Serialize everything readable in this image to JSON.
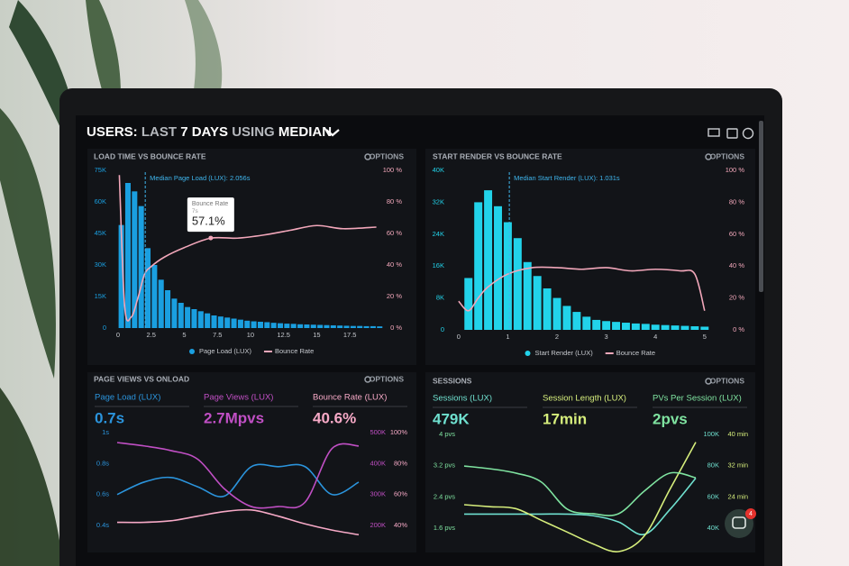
{
  "header": {
    "title_parts": [
      "USERS:",
      "LAST",
      "7 DAYS",
      "USING",
      "MEDIAN"
    ]
  },
  "chat_badge": "4",
  "chart_data": [
    {
      "type": "bar",
      "title": "LOAD TIME VS BOUNCE RATE",
      "options": "OPTIONS",
      "xlim": [
        -0.2,
        19.8
      ],
      "xticks": [
        0,
        2.5,
        5,
        7.5,
        10,
        12.5,
        15,
        17.5
      ],
      "ylim": [
        0,
        75000
      ],
      "yticks": [
        0,
        {
          "value": 15000,
          "label": "15K"
        },
        {
          "value": 30000,
          "label": "30K"
        },
        {
          "value": 45000,
          "label": "45K"
        },
        {
          "value": 60000,
          "label": "60K"
        },
        {
          "value": 75000,
          "label": "75K"
        }
      ],
      "y2lim": [
        0,
        100
      ],
      "y2ticks": [
        {
          "value": 0,
          "label": "0 %"
        },
        {
          "value": 20,
          "label": "20 %"
        },
        {
          "value": 40,
          "label": "40 %"
        },
        {
          "value": 60,
          "label": "60 %"
        },
        {
          "value": 80,
          "label": "80 %"
        },
        {
          "value": 100,
          "label": "100 %"
        }
      ],
      "series": [
        {
          "name": "Page Load (LUX)",
          "type": "bar",
          "color": "#1a9fe0",
          "x": [
            0.25,
            0.75,
            1.25,
            1.75,
            2.25,
            2.75,
            3.25,
            3.75,
            4.25,
            4.75,
            5.25,
            5.75,
            6.25,
            6.75,
            7.25,
            7.75,
            8.25,
            8.75,
            9.25,
            9.75,
            10.25,
            10.75,
            11.25,
            11.75,
            12.25,
            12.75,
            13.25,
            13.75,
            14.25,
            14.75,
            15.25,
            15.75,
            16.25,
            16.75,
            17.25,
            17.75,
            18.25,
            18.75,
            19.25,
            19.75
          ],
          "values": [
            49000,
            69000,
            65000,
            58000,
            38000,
            30000,
            23000,
            18000,
            14000,
            12000,
            10000,
            9000,
            8000,
            7000,
            6000,
            5500,
            5000,
            4500,
            4000,
            3500,
            3200,
            3000,
            2800,
            2500,
            2300,
            2100,
            2000,
            1800,
            1700,
            1600,
            1500,
            1400,
            1300,
            1200,
            1100,
            1000,
            1000,
            900,
            900,
            800
          ]
        },
        {
          "name": "Bounce Rate",
          "type": "line",
          "axis": "y2",
          "color": "#f2a7ba",
          "x": [
            0.1,
            0.5,
            1,
            1.5,
            2,
            2.5,
            3.5,
            5,
            7,
            9,
            11,
            13,
            15,
            17,
            19.5
          ],
          "values": [
            97,
            14,
            7,
            19,
            34,
            39,
            45,
            51,
            57,
            57,
            59,
            62,
            65,
            63,
            64
          ]
        }
      ],
      "median": {
        "label": "Median Page Load (LUX): 2.056s",
        "x": 2.056
      },
      "tooltip": {
        "title": "Bounce Rate",
        "subtitle": "7s",
        "value_label": "57.1%",
        "x": 7,
        "value": 57.1
      }
    },
    {
      "type": "bar",
      "title": "START RENDER VS BOUNCE RATE",
      "options": "OPTIONS",
      "xlim": [
        -0.07,
        5.15
      ],
      "xticks": [
        0,
        1,
        2,
        3,
        4,
        5
      ],
      "ylim": [
        0,
        40000
      ],
      "yticks": [
        0,
        {
          "value": 8000,
          "label": "8K"
        },
        {
          "value": 16000,
          "label": "16K"
        },
        {
          "value": 24000,
          "label": "24K"
        },
        {
          "value": 32000,
          "label": "32K"
        },
        {
          "value": 40000,
          "label": "40K"
        }
      ],
      "y2lim": [
        0,
        100
      ],
      "y2ticks": [
        {
          "value": 0,
          "label": "0 %"
        },
        {
          "value": 20,
          "label": "20 %"
        },
        {
          "value": 40,
          "label": "40 %"
        },
        {
          "value": 60,
          "label": "60 %"
        },
        {
          "value": 80,
          "label": "80 %"
        },
        {
          "value": 100,
          "label": "100 %"
        }
      ],
      "series": [
        {
          "name": "Start Render (LUX)",
          "type": "bar",
          "color": "#22d3ea",
          "x": [
            0.2,
            0.4,
            0.6,
            0.8,
            1,
            1.2,
            1.4,
            1.6,
            1.8,
            2,
            2.2,
            2.4,
            2.6,
            2.8,
            3,
            3.2,
            3.4,
            3.6,
            3.8,
            4,
            4.2,
            4.4,
            4.6,
            4.8,
            5
          ],
          "values": [
            13000,
            32000,
            35000,
            31000,
            27000,
            23000,
            17000,
            13500,
            10400,
            8000,
            6000,
            4500,
            3300,
            2500,
            2200,
            2000,
            1800,
            1600,
            1500,
            1300,
            1200,
            1100,
            1000,
            900,
            800
          ]
        },
        {
          "name": "Bounce Rate",
          "type": "line",
          "axis": "y2",
          "color": "#f2a7ba",
          "x": [
            0,
            0.2,
            0.4,
            0.6,
            1,
            1.5,
            2,
            2.5,
            3,
            3.5,
            4,
            4.5,
            4.8,
            5
          ],
          "values": [
            18,
            12,
            20,
            27,
            35,
            39,
            39,
            38,
            39,
            37,
            38,
            37,
            35,
            12
          ]
        }
      ],
      "median": {
        "label": "Median Start Render (LUX): 1.031s",
        "x": 1.031
      }
    },
    {
      "type": "line",
      "title": "PAGE VIEWS VS ONLOAD",
      "options": "OPTIONS",
      "ylim": [
        0.4,
        1.0
      ],
      "yticks": [
        {
          "value": 1,
          "label": "1s"
        },
        {
          "value": 0.8,
          "label": "0.8s"
        },
        {
          "value": 0.6,
          "label": "0.6s"
        },
        {
          "value": 0.4,
          "label": "0.4s"
        }
      ],
      "y2lim": [
        200000,
        500000
      ],
      "y2ticks": [
        {
          "value": 500000,
          "label": "500K"
        },
        {
          "value": 400000,
          "label": "400K"
        },
        {
          "value": 300000,
          "label": "300K"
        },
        {
          "value": 200000,
          "label": "200K"
        }
      ],
      "y3lim": [
        40,
        100
      ],
      "y3ticks": [
        {
          "value": 100,
          "label": "100%"
        },
        {
          "value": 80,
          "label": "80%"
        },
        {
          "value": 60,
          "label": "60%"
        },
        {
          "value": 40,
          "label": "40%"
        }
      ],
      "series": [
        {
          "name": "Page Load (LUX)",
          "current": "0.7s",
          "color": "#2b94dc",
          "values": [
            0.6,
            0.68,
            0.71,
            0.65,
            0.59,
            0.78,
            0.78,
            0.78,
            0.6,
            0.68
          ]
        },
        {
          "name": "Page Views (LUX)",
          "current": "2.7Mpvs",
          "color": "#c04fc4",
          "axis": "y2",
          "values": [
            468000,
            457000,
            442000,
            414000,
            318000,
            261000,
            261000,
            275000,
            448000,
            457000
          ]
        },
        {
          "name": "Bounce Rate (LUX)",
          "current": "40.6%",
          "color": "#f6a9c6",
          "axis": "y3",
          "values": [
            42,
            42,
            43,
            46,
            49,
            50,
            46,
            41,
            37,
            34
          ]
        }
      ]
    },
    {
      "type": "line",
      "title": "SESSIONS",
      "options": "OPTIONS",
      "ylim": [
        1.6,
        4
      ],
      "yticks": [
        {
          "value": 4,
          "label": "4 pvs"
        },
        {
          "value": 3.2,
          "label": "3.2 pvs"
        },
        {
          "value": 2.4,
          "label": "2.4 pvs"
        },
        {
          "value": 1.6,
          "label": "1.6 pvs"
        }
      ],
      "y2lim": [
        40000,
        100000
      ],
      "y2ticks": [
        {
          "value": 100000,
          "label": "100K"
        },
        {
          "value": 80000,
          "label": "80K"
        },
        {
          "value": 60000,
          "label": "60K"
        },
        {
          "value": 40000,
          "label": "40K"
        }
      ],
      "y3lim": [
        16,
        40
      ],
      "y3ticks": [
        {
          "value": 40,
          "label": "40 min"
        },
        {
          "value": 32,
          "label": "32 min"
        },
        {
          "value": 24,
          "label": "24 min"
        }
      ],
      "series": [
        {
          "name": "Sessions (LUX)",
          "current": "479K",
          "color": "#6fe0cf",
          "axis": "y2",
          "values": [
            49000,
            49000,
            49000,
            49000,
            49000,
            48000,
            44000,
            36000,
            52000,
            72000
          ]
        },
        {
          "name": "Session Length (LUX)",
          "current": "17min",
          "color": "#d6ee7c",
          "axis": "y3",
          "values": [
            22,
            21.5,
            21,
            18,
            15,
            12,
            10,
            14,
            26,
            38
          ]
        },
        {
          "name": "PVs Per Session (LUX)",
          "current": "2pvs",
          "color": "#7fe3a0",
          "values": [
            3.19,
            3.12,
            3.01,
            2.78,
            2.09,
            1.97,
            1.97,
            2.55,
            3.01,
            2.89
          ]
        }
      ]
    }
  ]
}
